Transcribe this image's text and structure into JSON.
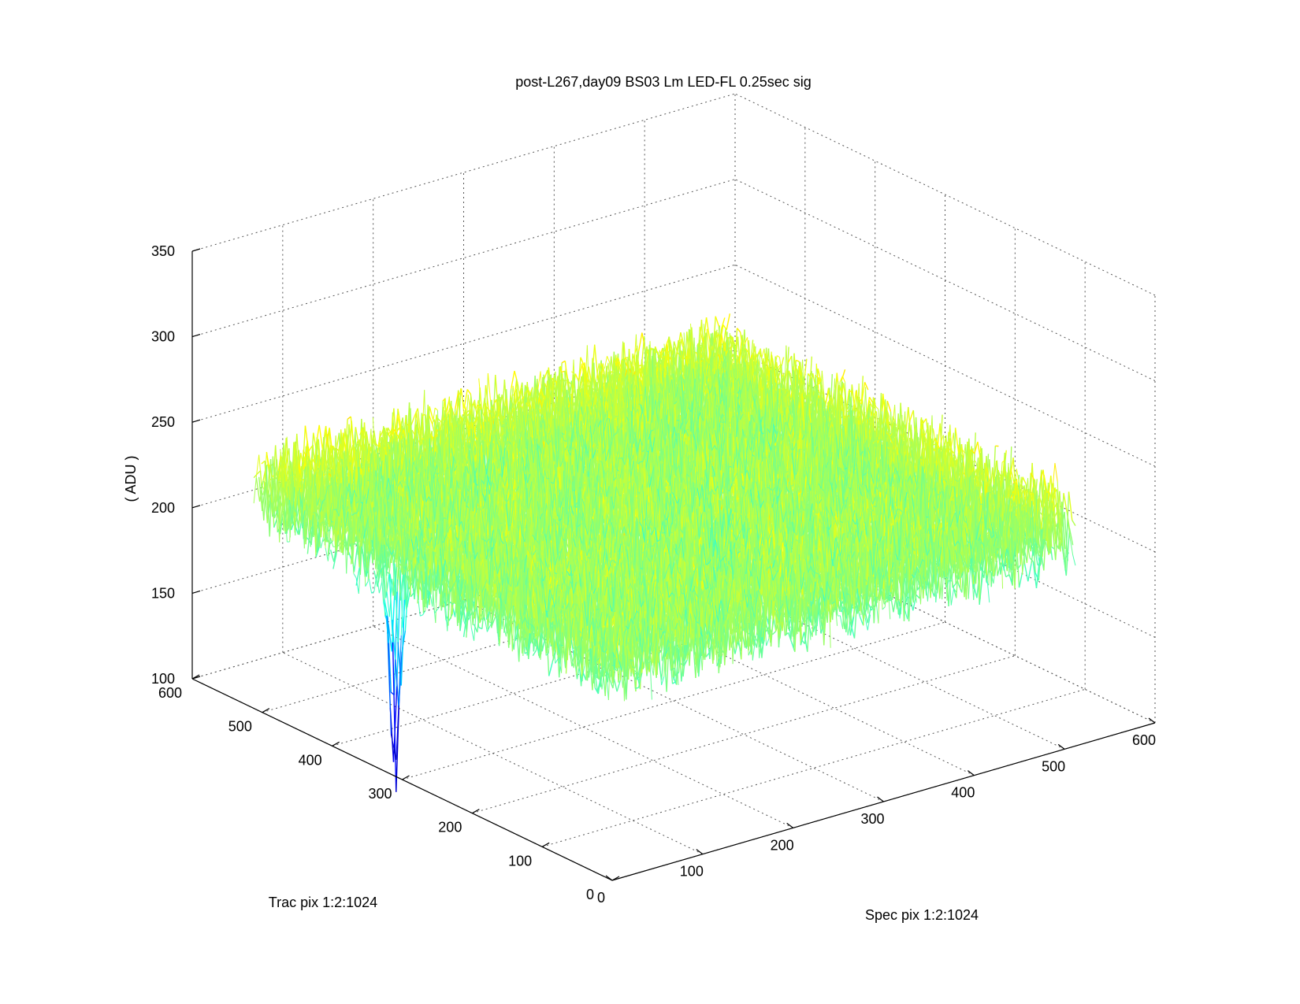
{
  "chart_data": {
    "type": "surface",
    "title": "post-L267,day09 BS03 Lm LED-FL 0.25sec sig",
    "xlabel": "Spec pix 1:2:1024",
    "ylabel": "Trac pix 1:2:1024",
    "zlabel": "( ADU )",
    "xlim": [
      0,
      600
    ],
    "ylim": [
      0,
      600
    ],
    "zlim": [
      100,
      350
    ],
    "x_ticks": [
      "0",
      "100",
      "200",
      "300",
      "400",
      "500",
      "600"
    ],
    "y_ticks": [
      "0",
      "100",
      "200",
      "300",
      "400",
      "500",
      "600"
    ],
    "z_ticks": [
      "100",
      "150",
      "200",
      "250",
      "300",
      "350"
    ],
    "grid": true,
    "colormap": "jet",
    "surface_extent": {
      "x": [
        0,
        512
      ],
      "y": [
        0,
        512
      ]
    },
    "baseline_level": 228,
    "noise_amplitude": 32,
    "dip": {
      "x": 8,
      "y": 320,
      "min_value": 105
    },
    "colors": {
      "high": "#cc0000",
      "mid": "#ff8800",
      "low": "#ffdd00",
      "dip": "#0044ff"
    }
  }
}
